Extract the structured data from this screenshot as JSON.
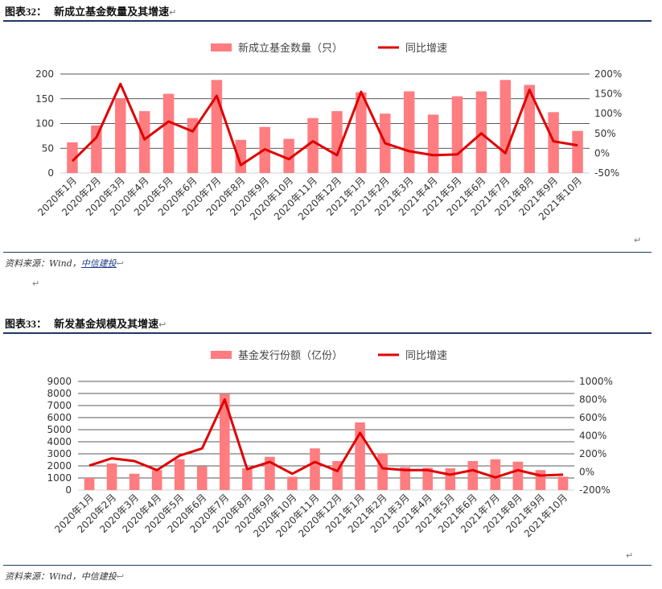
{
  "figure1": {
    "title_prefix": "图表",
    "title_number": "32",
    "title_sep": "：",
    "title_text": "新成立基金数量及其增速",
    "source_label": "资料来源：Wind，",
    "source_link": "中信建投",
    "chart_data": {
      "type": "bar",
      "categories": [
        "2020年1月",
        "2020年2月",
        "2020年3月",
        "2020年4月",
        "2020年5月",
        "2020年6月",
        "2020年7月",
        "2020年8月",
        "2020年9月",
        "2020年10月",
        "2020年11月",
        "2020年12月",
        "2021年1月",
        "2021年2月",
        "2021年3月",
        "2021年4月",
        "2021年5月",
        "2021年6月",
        "2021年7月",
        "2021年8月",
        "2021年9月",
        "2021年10月"
      ],
      "series": [
        {
          "name": "新成立基金数量（只）",
          "kind": "bar",
          "axis": "left",
          "color": "#ff7c80",
          "values": [
            62,
            96,
            150,
            125,
            160,
            111,
            188,
            67,
            93,
            69,
            111,
            125,
            163,
            120,
            165,
            118,
            155,
            165,
            188,
            178,
            123,
            85
          ]
        },
        {
          "name": "同比增速",
          "kind": "line",
          "axis": "right",
          "color": "#e00000",
          "values": [
            -20,
            40,
            175,
            35,
            80,
            55,
            145,
            -30,
            10,
            -15,
            30,
            -5,
            155,
            25,
            5,
            -5,
            -3,
            50,
            0,
            160,
            30,
            20
          ]
        }
      ],
      "yleft": {
        "min": 0,
        "max": 200,
        "ticks": [
          0,
          50,
          100,
          150,
          200
        ]
      },
      "yright": {
        "min": -50,
        "max": 200,
        "ticks": [
          -50,
          0,
          50,
          100,
          150,
          200
        ],
        "suffix": "%"
      },
      "legend_position": "top"
    }
  },
  "figure2": {
    "title_prefix": "图表",
    "title_number": "33",
    "title_sep": "：",
    "title_text": "新发基金规模及其增速",
    "source_label": "资料来源：Wind，",
    "source_link": "中信建投",
    "chart_data": {
      "type": "bar",
      "categories": [
        "2020年1月",
        "2020年2月",
        "2020年3月",
        "2020年4月",
        "2020年5月",
        "2020年6月",
        "2020年7月",
        "2020年8月",
        "2020年9月",
        "2020年10月",
        "2020年11月",
        "2020年12月",
        "2021年1月",
        "2021年2月",
        "2021年3月",
        "2021年4月",
        "2021年5月",
        "2021年6月",
        "2021年7月",
        "2021年8月",
        "2021年9月",
        "2021年10月"
      ],
      "series": [
        {
          "name": "基金发行份额（亿份）",
          "kind": "bar",
          "axis": "left",
          "color": "#ff7c80",
          "values": [
            1000,
            2200,
            1350,
            1650,
            2550,
            1950,
            7950,
            1800,
            2750,
            1100,
            3450,
            2400,
            5600,
            3050,
            1900,
            1850,
            1800,
            2400,
            2550,
            2350,
            1650,
            1100
          ]
        },
        {
          "name": "同比增速",
          "kind": "line",
          "axis": "right",
          "color": "#e00000",
          "values": [
            70,
            150,
            120,
            20,
            180,
            260,
            800,
            30,
            110,
            -20,
            110,
            10,
            430,
            40,
            20,
            20,
            -30,
            20,
            -60,
            20,
            -40,
            -30
          ]
        }
      ],
      "yleft": {
        "min": 0,
        "max": 9000,
        "ticks": [
          0,
          1000,
          2000,
          3000,
          4000,
          5000,
          6000,
          7000,
          8000,
          9000
        ]
      },
      "yright": {
        "min": -200,
        "max": 1000,
        "ticks": [
          -200,
          0,
          200,
          400,
          600,
          800,
          1000
        ],
        "suffix": "%"
      },
      "legend_position": "top"
    }
  },
  "marks": {
    "return_glyph": "↵",
    "return_glyph_alt": "↩"
  }
}
